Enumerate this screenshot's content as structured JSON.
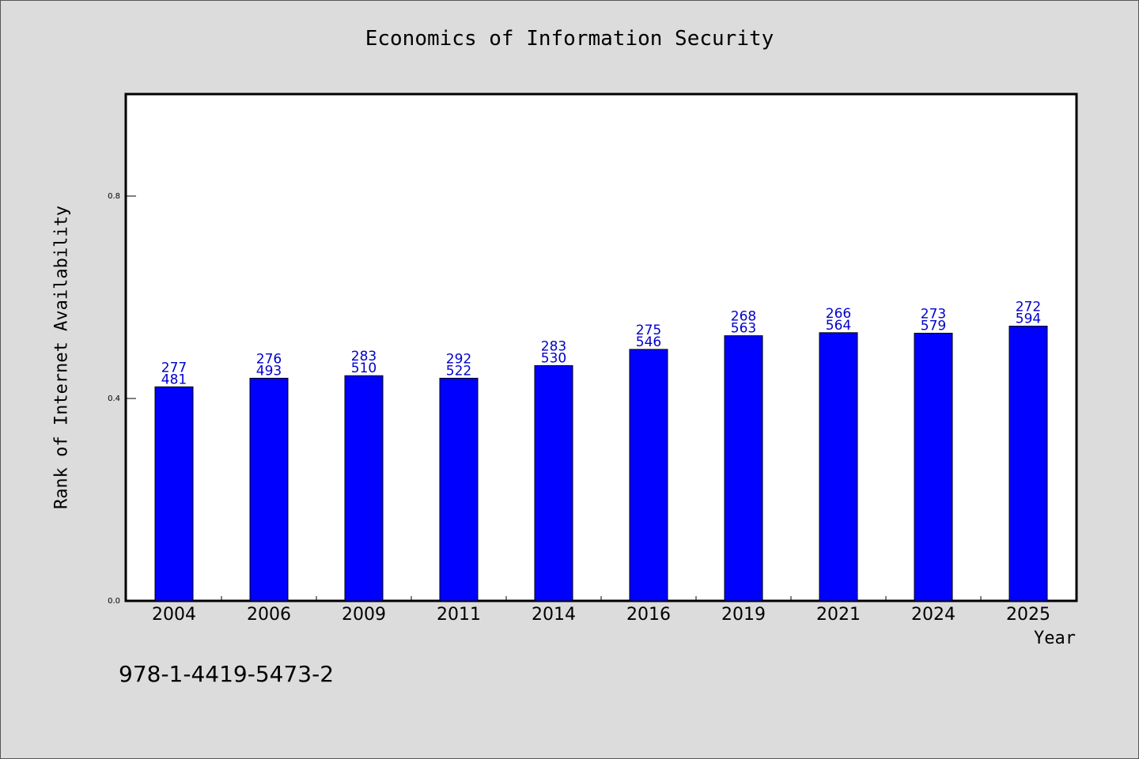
{
  "chart_data": {
    "type": "bar",
    "title": "Economics of Information Security",
    "xlabel": "Year",
    "ylabel": "Rank of Internet Availability",
    "categories": [
      "2004",
      "2006",
      "2009",
      "2011",
      "2014",
      "2016",
      "2019",
      "2021",
      "2024",
      "2025"
    ],
    "values": [
      0.423,
      0.44,
      0.445,
      0.44,
      0.465,
      0.497,
      0.524,
      0.53,
      0.529,
      0.543
    ],
    "label_top": [
      "277",
      "276",
      "283",
      "292",
      "283",
      "275",
      "268",
      "266",
      "273",
      "272"
    ],
    "label_bottom": [
      "481",
      "493",
      "510",
      "522",
      "530",
      "546",
      "563",
      "564",
      "579",
      "594"
    ],
    "yticks": [
      0.0,
      0.4,
      0.8
    ],
    "ytick_labels": [
      "0.0",
      "0.4",
      "0.8"
    ],
    "ylim": [
      0,
      1.0
    ],
    "grid": false,
    "bar_color": "#0000ff",
    "label_color": "#0000cc"
  },
  "footer": "978-1-4419-5473-2"
}
